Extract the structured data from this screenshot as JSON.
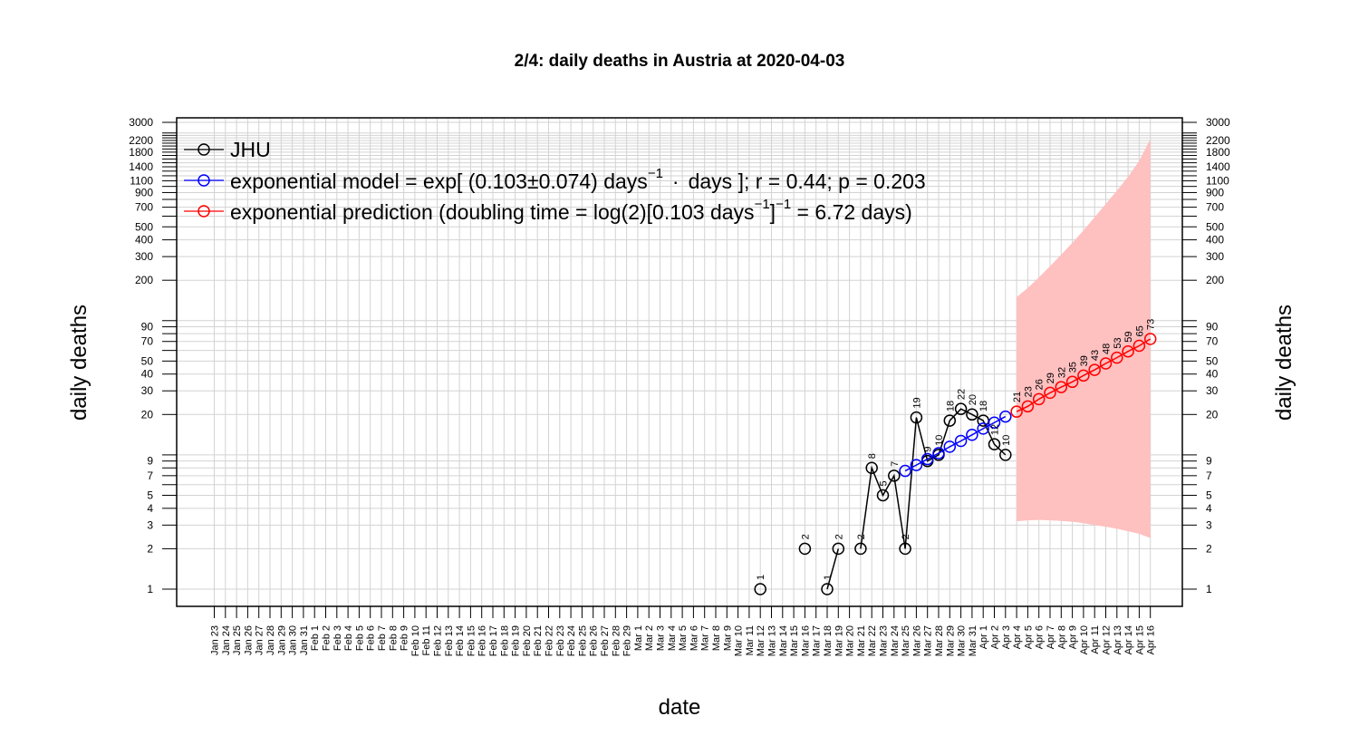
{
  "chart_data": {
    "type": "scatter",
    "title": "2/4: daily deaths in Austria at 2020-04-03",
    "xlabel": "date",
    "ylabel": "daily deaths",
    "y_scale": "log",
    "ylim": [
      1,
      3000
    ],
    "grid": true,
    "legend_position": "top-left",
    "y_ticks": [
      1,
      2,
      3,
      4,
      5,
      7,
      9,
      20,
      30,
      40,
      50,
      70,
      90,
      200,
      300,
      400,
      500,
      700,
      900,
      1100,
      1400,
      1800,
      2200,
      3000
    ],
    "y_minor_ticks": [
      6,
      8,
      10,
      60,
      80,
      100,
      600,
      800,
      1000,
      1200,
      1300,
      1500,
      1600,
      1700,
      1900,
      2000,
      2100,
      2300,
      2400,
      2500
    ],
    "x_ticks": [
      "Jan 23",
      "Jan 24",
      "Jan 25",
      "Jan 26",
      "Jan 27",
      "Jan 28",
      "Jan 29",
      "Jan 30",
      "Jan 31",
      "Feb 1",
      "Feb 2",
      "Feb 3",
      "Feb 4",
      "Feb 5",
      "Feb 6",
      "Feb 7",
      "Feb 8",
      "Feb 9",
      "Feb 10",
      "Feb 11",
      "Feb 12",
      "Feb 13",
      "Feb 14",
      "Feb 15",
      "Feb 16",
      "Feb 17",
      "Feb 18",
      "Feb 19",
      "Feb 20",
      "Feb 21",
      "Feb 22",
      "Feb 23",
      "Feb 24",
      "Feb 25",
      "Feb 26",
      "Feb 27",
      "Feb 28",
      "Feb 29",
      "Mar 1",
      "Mar 2",
      "Mar 3",
      "Mar 4",
      "Mar 5",
      "Mar 6",
      "Mar 7",
      "Mar 8",
      "Mar 9",
      "Mar 10",
      "Mar 11",
      "Mar 12",
      "Mar 13",
      "Mar 14",
      "Mar 15",
      "Mar 16",
      "Mar 17",
      "Mar 18",
      "Mar 19",
      "Mar 20",
      "Mar 21",
      "Mar 22",
      "Mar 23",
      "Mar 24",
      "Mar 25",
      "Mar 26",
      "Mar 27",
      "Mar 28",
      "Mar 29",
      "Mar 30",
      "Mar 31",
      "Apr 1",
      "Apr 2",
      "Apr 3",
      "Apr 4",
      "Apr 5",
      "Apr 6",
      "Apr 7",
      "Apr 8",
      "Apr 9",
      "Apr 10",
      "Apr 11",
      "Apr 12",
      "Apr 13",
      "Apr 14",
      "Apr 15",
      "Apr 16"
    ],
    "legend": {
      "jhu": "JHU",
      "model_prefix": "exponential model = exp[ (0.103",
      "model_pm": "±",
      "model_mid": "0.074) days",
      "model_sup": "−1",
      "model_dot": "·",
      "model_suffix": "days ]; r = 0.44; p = 0.203",
      "pred_prefix": "exponential prediction (doubling time = log(2)[0.103 days",
      "pred_sup1": "−1",
      "pred_mid": "]",
      "pred_sup2": "−1",
      "pred_suffix": " = 6.72 days)"
    },
    "series": [
      {
        "key": "jhu",
        "color": "#000000",
        "segments": [
          [
            {
              "x": "Mar 12",
              "y": 1
            }
          ],
          [
            {
              "x": "Mar 16",
              "y": 2
            }
          ],
          [
            {
              "x": "Mar 18",
              "y": 1
            },
            {
              "x": "Mar 19",
              "y": 2
            }
          ],
          [
            {
              "x": "Mar 21",
              "y": 2
            },
            {
              "x": "Mar 22",
              "y": 8
            },
            {
              "x": "Mar 23",
              "y": 5
            },
            {
              "x": "Mar 24",
              "y": 7
            },
            {
              "x": "Mar 25",
              "y": 2
            },
            {
              "x": "Mar 26",
              "y": 19
            },
            {
              "x": "Mar 27",
              "y": 9
            },
            {
              "x": "Mar 28",
              "y": 10
            },
            {
              "x": "Mar 29",
              "y": 18
            },
            {
              "x": "Mar 30",
              "y": 22
            },
            {
              "x": "Mar 31",
              "y": 20
            },
            {
              "x": "Apr 1",
              "y": 18
            },
            {
              "x": "Apr 2",
              "y": 12
            },
            {
              "x": "Apr 3",
              "y": 10
            }
          ]
        ],
        "labels": [
          {
            "x": "Mar 12",
            "y": 1,
            "text": "1"
          },
          {
            "x": "Mar 16",
            "y": 2,
            "text": "2"
          },
          {
            "x": "Mar 18",
            "y": 1,
            "text": "1"
          },
          {
            "x": "Mar 19",
            "y": 2,
            "text": "2"
          },
          {
            "x": "Mar 21",
            "y": 2,
            "text": "2"
          },
          {
            "x": "Mar 22",
            "y": 8,
            "text": "8"
          },
          {
            "x": "Mar 23",
            "y": 5,
            "text": "5"
          },
          {
            "x": "Mar 24",
            "y": 7,
            "text": "7"
          },
          {
            "x": "Mar 25",
            "y": 2,
            "text": "2"
          },
          {
            "x": "Mar 26",
            "y": 19,
            "text": "19"
          },
          {
            "x": "Mar 27",
            "y": 9,
            "text": "9"
          },
          {
            "x": "Mar 28",
            "y": 10,
            "text": "10"
          },
          {
            "x": "Mar 29",
            "y": 18,
            "text": "18"
          },
          {
            "x": "Mar 30",
            "y": 22,
            "text": "22"
          },
          {
            "x": "Mar 31",
            "y": 20,
            "text": "20"
          },
          {
            "x": "Apr 1",
            "y": 18,
            "text": "18"
          },
          {
            "x": "Apr 2",
            "y": 12,
            "text": "12"
          },
          {
            "x": "Apr 3",
            "y": 10,
            "text": "10"
          }
        ]
      },
      {
        "key": "model",
        "color": "#0000ff",
        "points": [
          {
            "x": "Mar 25",
            "y": 7.6
          },
          {
            "x": "Mar 26",
            "y": 8.4
          },
          {
            "x": "Mar 27",
            "y": 9.3
          },
          {
            "x": "Mar 28",
            "y": 10.3
          },
          {
            "x": "Mar 29",
            "y": 11.5
          },
          {
            "x": "Mar 30",
            "y": 12.7
          },
          {
            "x": "Mar 31",
            "y": 14.1
          },
          {
            "x": "Apr 1",
            "y": 15.7
          },
          {
            "x": "Apr 2",
            "y": 17.4
          },
          {
            "x": "Apr 3",
            "y": 19.3
          }
        ]
      },
      {
        "key": "prediction",
        "color": "#ff0000",
        "band_color": "#ffc0c0",
        "points": [
          {
            "x": "Apr 4",
            "y": 21
          },
          {
            "x": "Apr 5",
            "y": 23
          },
          {
            "x": "Apr 6",
            "y": 26
          },
          {
            "x": "Apr 7",
            "y": 29
          },
          {
            "x": "Apr 8",
            "y": 32
          },
          {
            "x": "Apr 9",
            "y": 35
          },
          {
            "x": "Apr 10",
            "y": 39
          },
          {
            "x": "Apr 11",
            "y": 43
          },
          {
            "x": "Apr 12",
            "y": 48
          },
          {
            "x": "Apr 13",
            "y": 53
          },
          {
            "x": "Apr 14",
            "y": 59
          },
          {
            "x": "Apr 15",
            "y": 65
          },
          {
            "x": "Apr 16",
            "y": 73
          }
        ],
        "band_upper": [
          {
            "x": "Apr 4",
            "y": 150
          },
          {
            "x": "Apr 5",
            "y": 175
          },
          {
            "x": "Apr 6",
            "y": 210
          },
          {
            "x": "Apr 7",
            "y": 255
          },
          {
            "x": "Apr 8",
            "y": 310
          },
          {
            "x": "Apr 9",
            "y": 380
          },
          {
            "x": "Apr 10",
            "y": 470
          },
          {
            "x": "Apr 11",
            "y": 590
          },
          {
            "x": "Apr 12",
            "y": 740
          },
          {
            "x": "Apr 13",
            "y": 930
          },
          {
            "x": "Apr 14",
            "y": 1180
          },
          {
            "x": "Apr 15",
            "y": 1550
          },
          {
            "x": "Apr 16",
            "y": 2250
          }
        ],
        "band_lower": [
          {
            "x": "Apr 4",
            "y": 3.2
          },
          {
            "x": "Apr 5",
            "y": 3.25
          },
          {
            "x": "Apr 6",
            "y": 3.28
          },
          {
            "x": "Apr 7",
            "y": 3.25
          },
          {
            "x": "Apr 8",
            "y": 3.22
          },
          {
            "x": "Apr 9",
            "y": 3.18
          },
          {
            "x": "Apr 10",
            "y": 3.1
          },
          {
            "x": "Apr 11",
            "y": 3.0
          },
          {
            "x": "Apr 12",
            "y": 2.92
          },
          {
            "x": "Apr 13",
            "y": 2.82
          },
          {
            "x": "Apr 14",
            "y": 2.7
          },
          {
            "x": "Apr 15",
            "y": 2.58
          },
          {
            "x": "Apr 16",
            "y": 2.4
          }
        ]
      }
    ]
  }
}
